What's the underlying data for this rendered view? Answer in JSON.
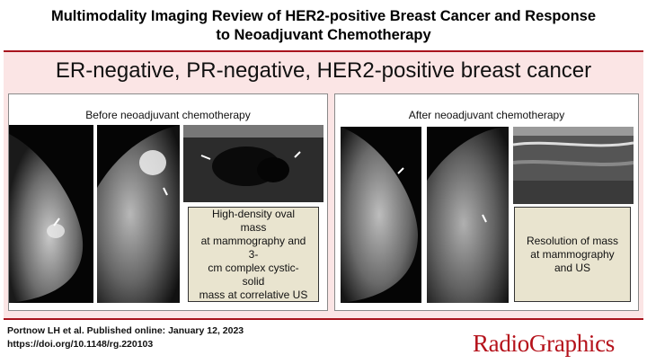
{
  "title": {
    "line1": "Multimodality Imaging Review of HER2-positive Breast Cancer and Response",
    "line2": "to Neoadjuvant Chemotherapy"
  },
  "heading": "ER-negative, PR-negative, HER2-positive breast cancer",
  "before": {
    "label": "Before neoadjuvant chemotherapy",
    "caption": "High-density oval mass\nat mammography and 3-\ncm complex cystic-solid\nmass at correlative US"
  },
  "after": {
    "label": "After neoadjuvant chemotherapy",
    "caption": "Resolution of mass\nat mammography\nand US"
  },
  "citation": {
    "line1": "Portnow LH et al. Published online: January 12, 2023",
    "line2": "https://doi.org/10.1148/rg.220103"
  },
  "logo": "RadioGraphics",
  "colors": {
    "accent": "#a8141d",
    "panel": "#fbe5e5",
    "caption_bg": "#e9e4cf"
  }
}
